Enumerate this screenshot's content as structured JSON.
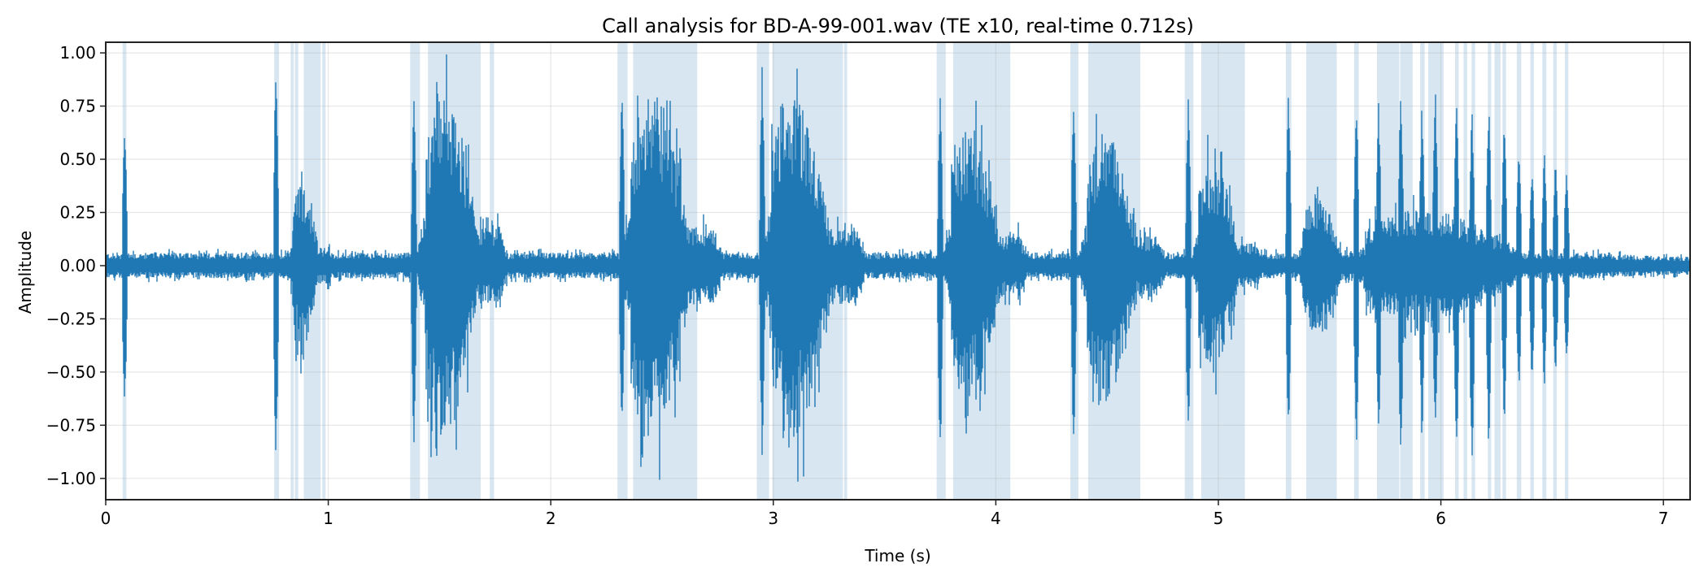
{
  "chart_data": {
    "type": "line",
    "title": "Call analysis for BD-A-99-001.wav (TE x10, real-time 0.712s)",
    "xlabel": "Time (s)",
    "ylabel": "Amplitude",
    "xlim": [
      0,
      7.12
    ],
    "ylim": [
      -1.1,
      1.05
    ],
    "xticks": [
      0,
      1,
      2,
      3,
      4,
      5,
      6,
      7
    ],
    "xtick_labels": [
      "0",
      "1",
      "2",
      "3",
      "4",
      "5",
      "6",
      "7"
    ],
    "yticks": [
      1.0,
      0.75,
      0.5,
      0.25,
      0.0,
      -0.25,
      -0.5,
      -0.75,
      -1.0
    ],
    "ytick_labels": [
      "1.00",
      "0.75",
      "0.50",
      "0.25",
      "0.00",
      "−0.25",
      "−0.50",
      "−0.75",
      "−1.00"
    ],
    "grid": true,
    "line_color": "#1f77b4",
    "span_color": "#1f77b4",
    "waveform": {
      "noise_floor": 0.05,
      "pulses": [
        {
          "t": 0.085,
          "max": 0.68,
          "min": -0.66
        },
        {
          "t": 0.765,
          "max": 0.94,
          "min": -0.94
        },
        {
          "t": 1.385,
          "max": 0.85,
          "min": -0.91
        },
        {
          "t": 2.32,
          "max": 0.85,
          "min": -0.8
        },
        {
          "t": 2.95,
          "max": 0.95,
          "min": -0.92
        },
        {
          "t": 3.75,
          "max": 0.85,
          "min": -0.9
        },
        {
          "t": 4.35,
          "max": 0.85,
          "min": -0.89
        },
        {
          "t": 4.865,
          "max": 0.83,
          "min": -0.83
        },
        {
          "t": 5.315,
          "max": 0.83,
          "min": -0.83
        },
        {
          "t": 5.62,
          "max": 0.79,
          "min": -0.9
        },
        {
          "t": 5.72,
          "max": 0.77,
          "min": -0.87
        },
        {
          "t": 5.82,
          "max": 0.87,
          "min": -0.92
        },
        {
          "t": 5.915,
          "max": 0.77,
          "min": -0.83
        },
        {
          "t": 5.975,
          "max": 0.85,
          "min": -0.83
        },
        {
          "t": 6.07,
          "max": 0.78,
          "min": -0.94
        },
        {
          "t": 6.14,
          "max": 0.75,
          "min": -1.0
        },
        {
          "t": 6.215,
          "max": 0.78,
          "min": -0.89
        },
        {
          "t": 6.285,
          "max": 0.7,
          "min": -0.78
        },
        {
          "t": 6.35,
          "max": 0.58,
          "min": -0.61
        },
        {
          "t": 6.41,
          "max": 0.45,
          "min": -0.56
        },
        {
          "t": 6.465,
          "max": 0.55,
          "min": -0.58
        },
        {
          "t": 6.515,
          "max": 0.5,
          "min": -0.56
        },
        {
          "t": 6.565,
          "max": 0.48,
          "min": -0.48
        }
      ],
      "bursts": [
        {
          "start": 0.84,
          "end": 1.0,
          "amp": 0.38
        },
        {
          "start": 1.44,
          "end": 1.76,
          "amp": 0.79
        },
        {
          "start": 2.36,
          "end": 2.72,
          "amp": 0.82
        },
        {
          "start": 2.99,
          "end": 3.36,
          "amp": 0.8
        },
        {
          "start": 3.8,
          "end": 4.1,
          "amp": 0.62
        },
        {
          "start": 4.41,
          "end": 4.72,
          "amp": 0.61
        },
        {
          "start": 4.91,
          "end": 5.16,
          "amp": 0.47
        },
        {
          "start": 5.38,
          "end": 5.62,
          "amp": 0.33
        },
        {
          "start": 5.66,
          "end": 6.65,
          "amp": 0.26
        }
      ]
    },
    "highlighted_spans": [
      [
        0.076,
        0.093
      ],
      [
        0.757,
        0.779
      ],
      [
        0.831,
        0.845
      ],
      [
        0.85,
        0.865
      ],
      [
        0.89,
        0.966
      ],
      [
        0.973,
        0.988
      ],
      [
        1.368,
        1.412
      ],
      [
        1.448,
        1.685
      ],
      [
        1.726,
        1.745
      ],
      [
        2.3,
        2.345
      ],
      [
        2.37,
        2.658
      ],
      [
        2.926,
        2.981
      ],
      [
        2.996,
        3.313
      ],
      [
        3.318,
        3.332
      ],
      [
        3.734,
        3.775
      ],
      [
        3.808,
        4.065
      ],
      [
        4.335,
        4.371
      ],
      [
        4.415,
        4.649
      ],
      [
        4.849,
        4.888
      ],
      [
        4.923,
        5.119
      ],
      [
        5.303,
        5.328
      ],
      [
        5.395,
        5.532
      ],
      [
        5.61,
        5.631
      ],
      [
        5.713,
        5.813
      ],
      [
        5.817,
        5.873
      ],
      [
        5.907,
        5.927
      ],
      [
        5.943,
        6.012
      ],
      [
        6.064,
        6.08
      ],
      [
        6.102,
        6.118
      ],
      [
        6.138,
        6.154
      ],
      [
        6.211,
        6.226
      ],
      [
        6.241,
        6.268
      ],
      [
        6.277,
        6.293
      ],
      [
        6.341,
        6.361
      ],
      [
        6.402,
        6.418
      ],
      [
        6.456,
        6.474
      ],
      [
        6.505,
        6.521
      ],
      [
        6.557,
        6.573
      ]
    ]
  }
}
